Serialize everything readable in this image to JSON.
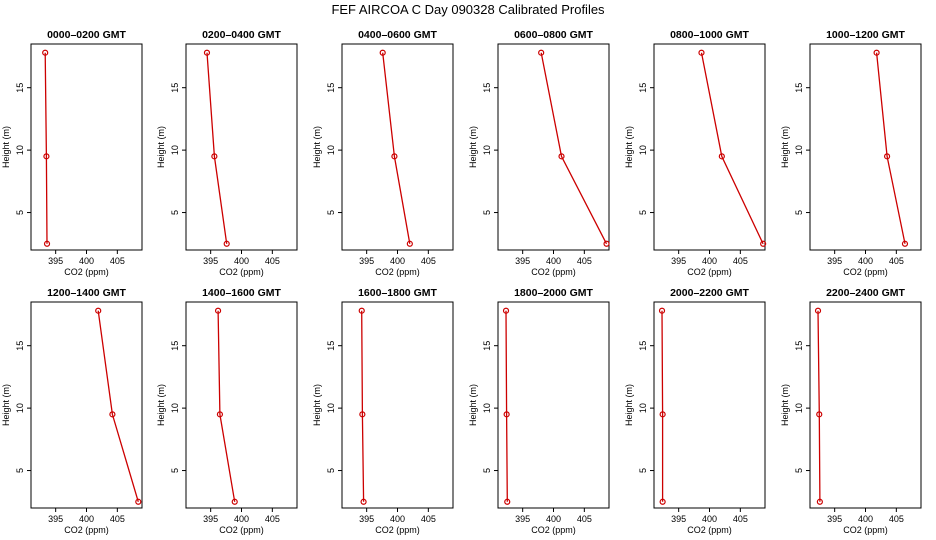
{
  "figure": {
    "title": "FEF AIRCOA C  Day 090328  Calibrated Profiles"
  },
  "chart_data": {
    "type": "line",
    "xlabel": "CO2 (ppm)",
    "ylabel": "Height (m)",
    "xlim": [
      391,
      409
    ],
    "ylim": [
      2,
      18.5
    ],
    "xticks": [
      395,
      400,
      405
    ],
    "yticks": [
      5,
      10,
      15
    ],
    "heights": [
      17.8,
      9.5,
      2.5
    ],
    "line_color": "#cc0000",
    "point_color": "#cc0000",
    "panels": [
      {
        "title": "0000–0200 GMT",
        "values": [
          393.3,
          393.5,
          393.6
        ]
      },
      {
        "title": "0200–0400 GMT",
        "values": [
          394.4,
          395.6,
          397.6
        ]
      },
      {
        "title": "0400–0600 GMT",
        "values": [
          397.6,
          399.5,
          402.0
        ]
      },
      {
        "title": "0600–0800 GMT",
        "values": [
          398.0,
          401.3,
          408.6
        ]
      },
      {
        "title": "0800–1000 GMT",
        "values": [
          398.7,
          402.0,
          408.7
        ]
      },
      {
        "title": "1000–1200 GMT",
        "values": [
          401.8,
          403.5,
          406.4
        ]
      },
      {
        "title": "1200–1400 GMT",
        "values": [
          401.9,
          404.2,
          408.4
        ]
      },
      {
        "title": "1400–1600 GMT",
        "values": [
          396.2,
          396.5,
          398.9
        ]
      },
      {
        "title": "1600–1800 GMT",
        "values": [
          394.2,
          394.3,
          394.5
        ]
      },
      {
        "title": "1800–2000 GMT",
        "values": [
          392.3,
          392.4,
          392.5
        ]
      },
      {
        "title": "2000–2200 GMT",
        "values": [
          392.3,
          392.4,
          392.4
        ]
      },
      {
        "title": "2200–2400 GMT",
        "values": [
          392.3,
          392.5,
          392.6
        ]
      }
    ]
  }
}
